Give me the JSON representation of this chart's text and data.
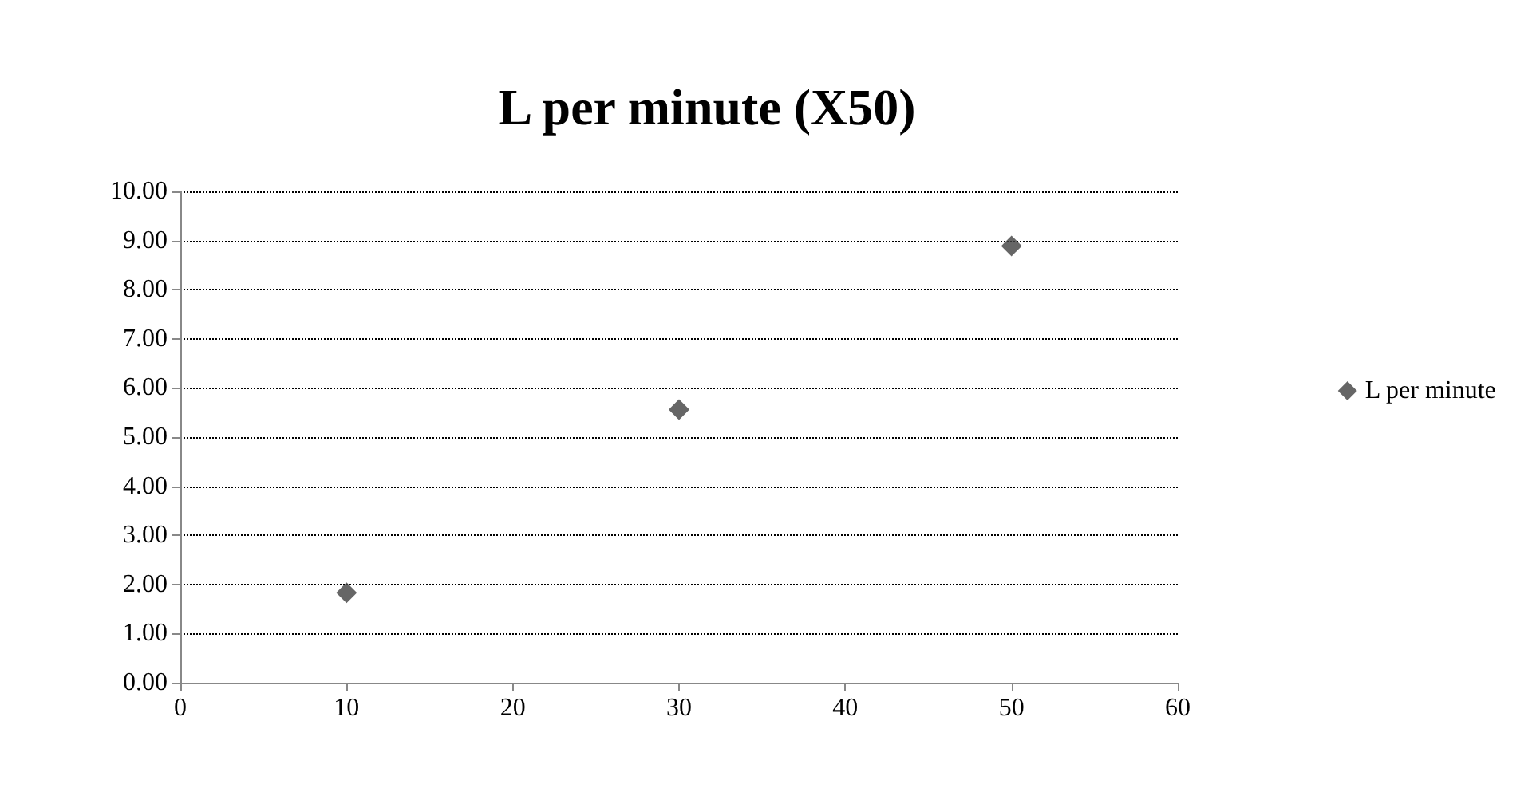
{
  "chart_data": {
    "type": "scatter",
    "title": "L per minute (X50)",
    "x": [
      10,
      30,
      50
    ],
    "series": [
      {
        "name": "L per minute",
        "color": "#404040",
        "values": [
          1.83,
          5.56,
          8.89
        ]
      }
    ],
    "xlim": [
      0,
      60
    ],
    "xticks": [
      0,
      10,
      20,
      30,
      40,
      50,
      60
    ],
    "ylim": [
      0,
      10
    ],
    "yticks": [
      {
        "value": 0,
        "label": "0.00"
      },
      {
        "value": 1,
        "label": "1.00"
      },
      {
        "value": 2,
        "label": "2.00"
      },
      {
        "value": 3,
        "label": "3.00"
      },
      {
        "value": 4,
        "label": "4.00"
      },
      {
        "value": 5,
        "label": "5.00"
      },
      {
        "value": 6,
        "label": "6.00"
      },
      {
        "value": 7,
        "label": "7.00"
      },
      {
        "value": 8,
        "label": "8.00"
      },
      {
        "value": 9,
        "label": "9.00"
      },
      {
        "value": 10,
        "label": "10.00"
      }
    ],
    "grid": "y",
    "legend": "right",
    "marker": "diamond"
  }
}
